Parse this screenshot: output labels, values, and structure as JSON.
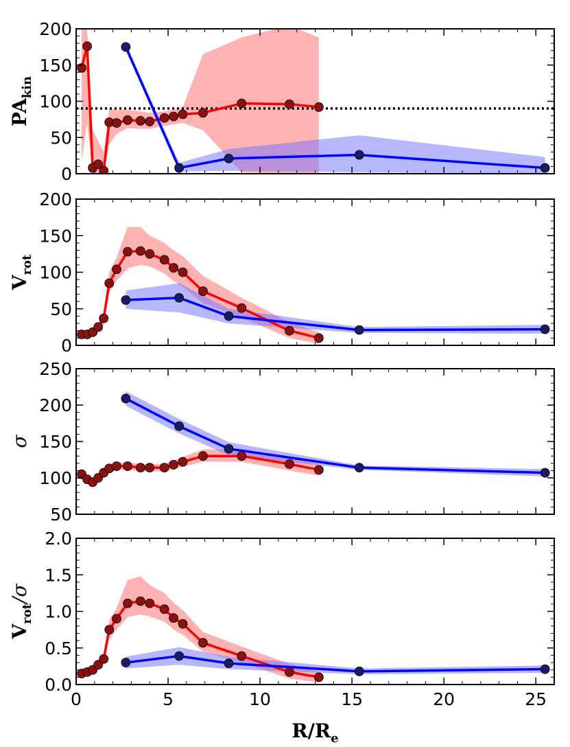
{
  "chart_data": [
    {
      "type": "line",
      "panel": "pa_kin",
      "ylabel": {
        "main": "PA",
        "sub": "kin"
      },
      "ylim": [
        0,
        200
      ],
      "yticks": [
        "0",
        "50",
        "100",
        "150",
        "200"
      ],
      "xlim": [
        0,
        26
      ],
      "reference_line": {
        "y": 90,
        "style": "dotted",
        "color": "#000000"
      },
      "series": [
        {
          "color": "#ff0000",
          "marker_color": "#8b1010",
          "band_color": "#ff6666",
          "x": [
            0.3,
            0.6,
            0.9,
            1.2,
            1.5,
            1.8,
            2.2,
            2.8,
            3.5,
            4.0,
            4.8,
            5.3,
            5.8,
            6.9,
            9.0,
            11.6,
            13.2
          ],
          "y": [
            146,
            176,
            8,
            13,
            4,
            71,
            70,
            74,
            73,
            72,
            77,
            79,
            82,
            84,
            97,
            96,
            92
          ],
          "lower": [
            18,
            70,
            0,
            0,
            0,
            40,
            55,
            63,
            62,
            62,
            66,
            68,
            70,
            60,
            2,
            0,
            0
          ],
          "upper": [
            200,
            200,
            60,
            45,
            30,
            90,
            88,
            88,
            86,
            84,
            86,
            88,
            92,
            165,
            188,
            205,
            188
          ]
        },
        {
          "color": "#0000ff",
          "marker_color": "#1a1a66",
          "band_color": "#7070ff",
          "x": [
            2.7,
            5.6,
            8.3,
            15.4,
            25.5
          ],
          "y": [
            175,
            8,
            21,
            26,
            8
          ],
          "lower": [
            170,
            3,
            4,
            2,
            0
          ],
          "upper": [
            180,
            15,
            34,
            53,
            23
          ]
        }
      ]
    },
    {
      "type": "line",
      "panel": "v_rot",
      "ylabel": {
        "main": "V",
        "sub": "rot"
      },
      "ylim": [
        0,
        200
      ],
      "yticks": [
        "0",
        "50",
        "100",
        "150",
        "200"
      ],
      "xlim": [
        0,
        26
      ],
      "series": [
        {
          "color": "#ff0000",
          "marker_color": "#8b1010",
          "band_color": "#ff6666",
          "x": [
            0.3,
            0.6,
            0.9,
            1.2,
            1.5,
            1.8,
            2.2,
            2.8,
            3.5,
            4.0,
            4.8,
            5.3,
            5.8,
            6.9,
            9.0,
            11.6,
            13.2
          ],
          "y": [
            15,
            15,
            18,
            25,
            37,
            85,
            104,
            128,
            129,
            125,
            117,
            106,
            100,
            74,
            51,
            20,
            10
          ],
          "lower": [
            10,
            10,
            12,
            18,
            28,
            72,
            88,
            105,
            110,
            108,
            98,
            88,
            80,
            58,
            38,
            10,
            2
          ],
          "upper": [
            20,
            20,
            24,
            32,
            46,
            100,
            120,
            162,
            162,
            150,
            140,
            130,
            122,
            95,
            65,
            32,
            18
          ]
        },
        {
          "color": "#0000ff",
          "marker_color": "#1a1a66",
          "band_color": "#7070ff",
          "x": [
            2.7,
            5.6,
            8.3,
            15.4,
            25.5
          ],
          "y": [
            62,
            65,
            40,
            21,
            22
          ],
          "lower": [
            50,
            45,
            30,
            17,
            16
          ],
          "upper": [
            75,
            85,
            50,
            25,
            28
          ]
        }
      ]
    },
    {
      "type": "line",
      "panel": "sigma",
      "ylabel": {
        "main": "σ",
        "sub": ""
      },
      "ylim": [
        50,
        250
      ],
      "yticks": [
        "50",
        "100",
        "150",
        "200",
        "250"
      ],
      "xlim": [
        0,
        26
      ],
      "series": [
        {
          "color": "#ff0000",
          "marker_color": "#8b1010",
          "band_color": "#ff6666",
          "x": [
            0.3,
            0.6,
            0.9,
            1.2,
            1.5,
            1.8,
            2.2,
            2.8,
            3.5,
            4.0,
            4.8,
            5.3,
            5.8,
            6.9,
            9.0,
            11.6,
            13.2
          ],
          "y": [
            105,
            98,
            94,
            100,
            107,
            113,
            116,
            116,
            114,
            114,
            114,
            118,
            122,
            130,
            130,
            119,
            111
          ],
          "lower": [
            100,
            93,
            89,
            95,
            102,
            108,
            111,
            111,
            109,
            109,
            109,
            112,
            115,
            122,
            122,
            110,
            103
          ],
          "upper": [
            110,
            103,
            99,
            105,
            112,
            118,
            121,
            121,
            119,
            119,
            119,
            124,
            129,
            139,
            139,
            128,
            119
          ]
        },
        {
          "color": "#0000ff",
          "marker_color": "#1a1a66",
          "band_color": "#7070ff",
          "x": [
            2.7,
            5.6,
            8.3,
            15.4,
            25.5
          ],
          "y": [
            209,
            171,
            140,
            114,
            107
          ],
          "lower": [
            199,
            161,
            131,
            111,
            102
          ],
          "upper": [
            219,
            181,
            149,
            117,
            112
          ]
        }
      ]
    },
    {
      "type": "line",
      "panel": "vrot_sigma",
      "ylabel": {
        "main": "V",
        "sub": "rot",
        "tail": "/σ"
      },
      "ylim": [
        0,
        2.0
      ],
      "yticks": [
        "0.0",
        "0.5",
        "1.0",
        "1.5",
        "2.0"
      ],
      "xlim": [
        0,
        26
      ],
      "xticks": [
        "0",
        "5",
        "10",
        "15",
        "20",
        "25"
      ],
      "xlabel": {
        "main": "R/R",
        "sub": "e"
      },
      "series": [
        {
          "color": "#ff0000",
          "marker_color": "#8b1010",
          "band_color": "#ff6666",
          "x": [
            0.3,
            0.6,
            0.9,
            1.2,
            1.5,
            1.8,
            2.2,
            2.8,
            3.5,
            4.0,
            4.8,
            5.3,
            5.8,
            6.9,
            9.0,
            11.6,
            13.2
          ],
          "y": [
            0.15,
            0.17,
            0.2,
            0.27,
            0.35,
            0.75,
            0.9,
            1.11,
            1.14,
            1.11,
            1.03,
            0.91,
            0.83,
            0.57,
            0.39,
            0.17,
            0.1
          ],
          "lower": [
            0.1,
            0.12,
            0.15,
            0.2,
            0.28,
            0.62,
            0.75,
            0.92,
            0.96,
            0.93,
            0.86,
            0.75,
            0.68,
            0.45,
            0.3,
            0.08,
            0.03
          ],
          "upper": [
            0.2,
            0.22,
            0.25,
            0.33,
            0.42,
            0.88,
            1.05,
            1.43,
            1.48,
            1.36,
            1.25,
            1.12,
            1.02,
            0.72,
            0.52,
            0.28,
            0.17
          ]
        },
        {
          "color": "#0000ff",
          "marker_color": "#1a1a66",
          "band_color": "#7070ff",
          "x": [
            2.7,
            5.6,
            8.3,
            15.4,
            25.5
          ],
          "y": [
            0.3,
            0.39,
            0.29,
            0.18,
            0.21
          ],
          "lower": [
            0.22,
            0.27,
            0.21,
            0.14,
            0.16
          ],
          "upper": [
            0.38,
            0.51,
            0.38,
            0.22,
            0.26
          ]
        }
      ]
    }
  ]
}
